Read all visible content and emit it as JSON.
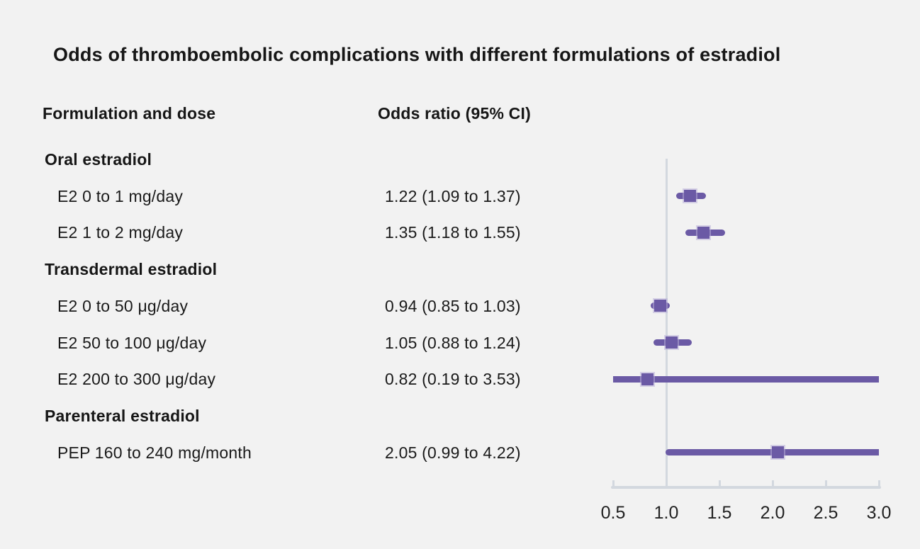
{
  "title": "Odds of thromboembolic complications with different formulations of estradiol",
  "columns": {
    "formulation": "Formulation and dose",
    "odds_ratio": "Odds ratio (95% CI)"
  },
  "colors": {
    "background": "#f2f2f2",
    "accent_purple": "#6b5aa5",
    "axis_gray": "#d3d8df",
    "text": "#1a1a1a"
  },
  "chart_data": {
    "type": "forest",
    "title": "Odds of thromboembolic complications with different formulations of estradiol",
    "xlabel": "",
    "ylabel": "",
    "xlim": [
      0.5,
      3.0
    ],
    "reference_line": 1.0,
    "tick_labels": [
      "0.5",
      "1.0",
      "1.5",
      "2.0",
      "2.5",
      "3.0"
    ],
    "tick_values": [
      0.5,
      1.0,
      1.5,
      2.0,
      2.5,
      3.0
    ],
    "legend": "none",
    "grid": "off",
    "groups": [
      {
        "label": "Oral estradiol",
        "rows": [
          {
            "label": "E2 0 to 1 mg/day",
            "or_text": "1.22 (1.09 to 1.37)",
            "or": 1.22,
            "lo": 1.09,
            "hi": 1.37
          },
          {
            "label": "E2 1 to 2 mg/day",
            "or_text": "1.35 (1.18 to 1.55)",
            "or": 1.35,
            "lo": 1.18,
            "hi": 1.55
          }
        ]
      },
      {
        "label": "Transdermal estradiol",
        "rows": [
          {
            "label": "E2 0 to 50 μg/day",
            "or_text": "0.94 (0.85 to 1.03)",
            "or": 0.94,
            "lo": 0.85,
            "hi": 1.03
          },
          {
            "label": "E2 50 to 100 μg/day",
            "or_text": "1.05 (0.88 to 1.24)",
            "or": 1.05,
            "lo": 0.88,
            "hi": 1.24
          },
          {
            "label": "E2 200 to 300 μg/day",
            "or_text": "0.82 (0.19 to 3.53)",
            "or": 0.82,
            "lo": 0.19,
            "hi": 3.53
          }
        ]
      },
      {
        "label": "Parenteral estradiol",
        "rows": [
          {
            "label": "PEP 160 to 240 mg/month",
            "or_text": "2.05 (0.99 to 4.22)",
            "or": 2.05,
            "lo": 0.99,
            "hi": 4.22
          }
        ]
      }
    ]
  }
}
